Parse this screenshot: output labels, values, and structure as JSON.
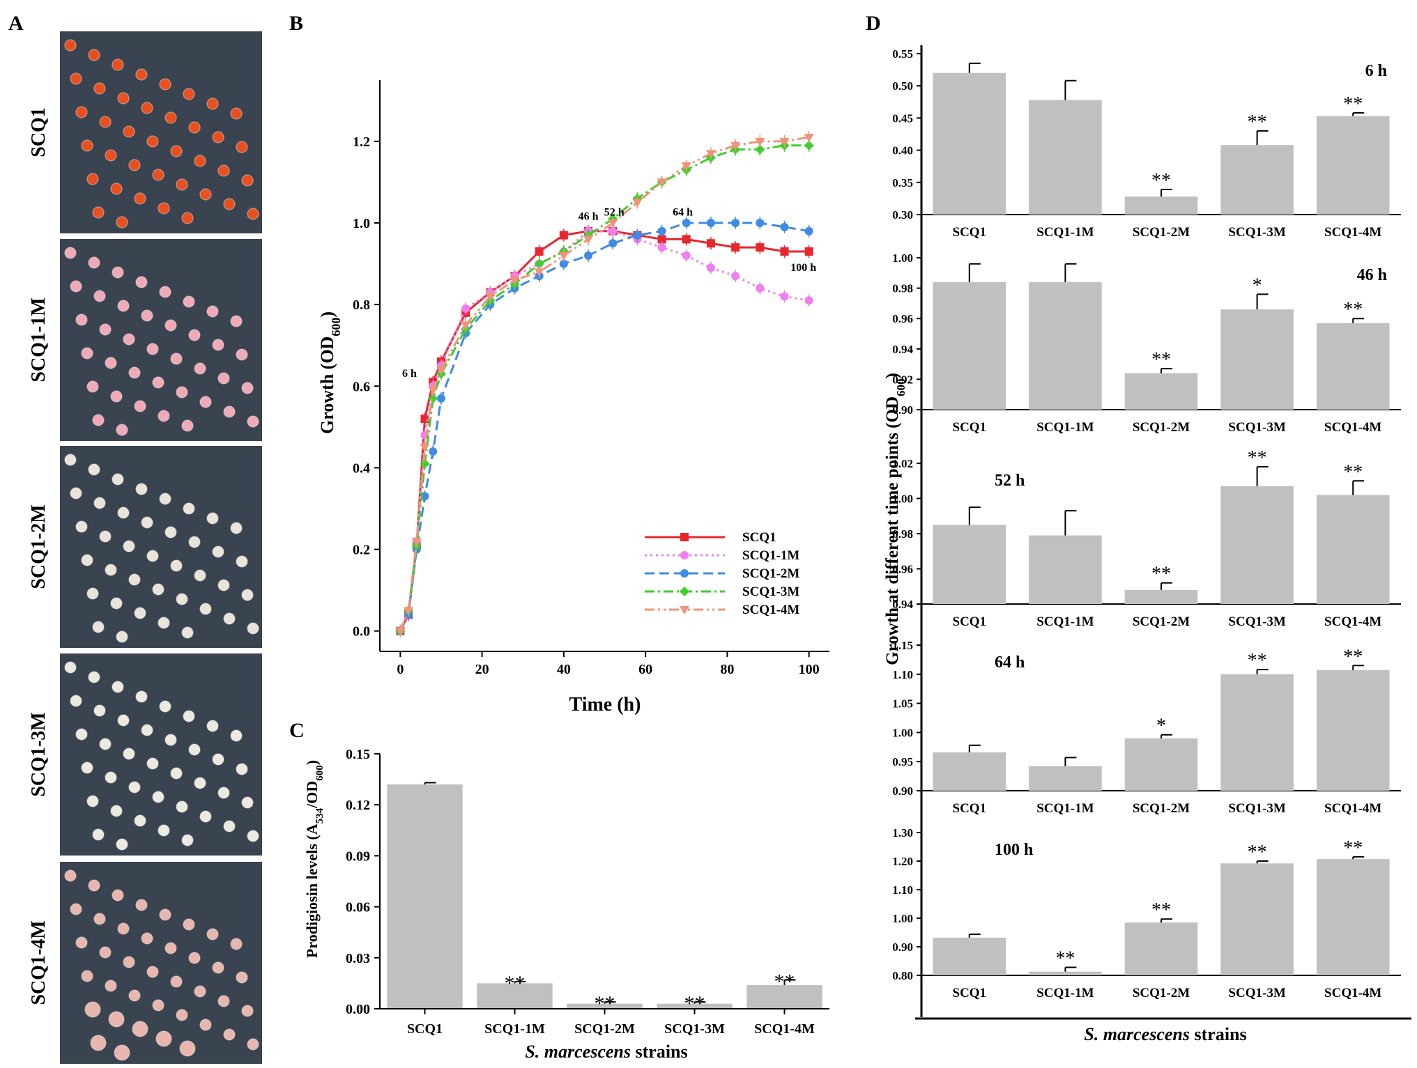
{
  "figure": {
    "panel_labels": [
      "A",
      "B",
      "C",
      "D"
    ],
    "strains": [
      "SCQ1",
      "SCQ1-1M",
      "SCQ1-2M",
      "SCQ1-3M",
      "SCQ1-4M"
    ],
    "plate_colors": [
      "#e8501f",
      "#f0a9b6",
      "#e9e3d8",
      "#ece9df",
      "#e8b6ac"
    ],
    "colors": {
      "bar_fill": "#c0c0c0",
      "axis": "#000000",
      "plate_bg": "#3a4350"
    }
  },
  "chart_data": [
    {
      "id": "B",
      "type": "line",
      "title": "",
      "xlabel": "Time (h)",
      "ylabel": "Growth (OD600)",
      "ylabel_main": "Growth (OD",
      "ylabel_sub": "600",
      "ylabel_end": ")",
      "xlim": [
        -5,
        105
      ],
      "ylim": [
        -0.05,
        1.35
      ],
      "xticks": [
        0,
        20,
        40,
        60,
        80,
        100
      ],
      "yticks": [
        0.0,
        0.2,
        0.4,
        0.6,
        0.8,
        1.0,
        1.2
      ],
      "legend_position": "bottom-right",
      "x": [
        0,
        2,
        4,
        6,
        8,
        10,
        16,
        22,
        28,
        34,
        40,
        46,
        52,
        58,
        64,
        70,
        76,
        82,
        88,
        94,
        100
      ],
      "series": [
        {
          "name": "SCQ1",
          "color": "#e8262d",
          "dash": "",
          "marker": "square",
          "values": [
            0.0,
            0.04,
            0.21,
            0.52,
            0.61,
            0.66,
            0.78,
            0.83,
            0.87,
            0.93,
            0.97,
            0.98,
            0.98,
            0.97,
            0.96,
            0.96,
            0.95,
            0.94,
            0.94,
            0.93,
            0.93
          ]
        },
        {
          "name": "SCQ1-1M",
          "color": "#f07ef0",
          "dash": "3,5",
          "marker": "circle",
          "values": [
            0.0,
            0.05,
            0.22,
            0.48,
            0.6,
            0.65,
            0.79,
            0.83,
            0.87,
            0.9,
            0.93,
            0.98,
            0.98,
            0.96,
            0.94,
            0.92,
            0.89,
            0.87,
            0.84,
            0.82,
            0.81
          ]
        },
        {
          "name": "SCQ1-2M",
          "color": "#3f8be6",
          "dash": "14,7",
          "marker": "circle",
          "values": [
            0.0,
            0.04,
            0.2,
            0.33,
            0.44,
            0.57,
            0.73,
            0.8,
            0.84,
            0.87,
            0.9,
            0.92,
            0.95,
            0.97,
            0.98,
            1.0,
            1.0,
            1.0,
            1.0,
            0.99,
            0.98
          ]
        },
        {
          "name": "SCQ1-3M",
          "color": "#3ecf2c",
          "dash": "14,5,3,5",
          "marker": "diamond",
          "values": [
            0.0,
            0.05,
            0.21,
            0.41,
            0.57,
            0.63,
            0.74,
            0.81,
            0.85,
            0.9,
            0.93,
            0.97,
            1.01,
            1.06,
            1.1,
            1.13,
            1.16,
            1.18,
            1.18,
            1.19,
            1.19
          ]
        },
        {
          "name": "SCQ1-4M",
          "color": "#f0937b",
          "dash": "14,5,3,5,3,5",
          "marker": "triangle-down",
          "values": [
            0.0,
            0.05,
            0.22,
            0.45,
            0.59,
            0.64,
            0.75,
            0.82,
            0.86,
            0.88,
            0.92,
            0.96,
            1.0,
            1.05,
            1.1,
            1.14,
            1.17,
            1.19,
            1.2,
            1.2,
            1.21
          ]
        }
      ],
      "annotations": [
        {
          "text": "6 h",
          "x": 6,
          "y": 0.52
        },
        {
          "text": "46 h",
          "x": 46,
          "y": 0.98
        },
        {
          "text": "52 h",
          "x": 52,
          "y": 0.98
        },
        {
          "text": "64 h",
          "x": 64,
          "y": 0.98
        },
        {
          "text": "100 h",
          "x": 100,
          "y": 0.93
        }
      ]
    },
    {
      "id": "C",
      "type": "bar",
      "title": "",
      "xlabel": "S. marcescens strains",
      "xlabel_italic": "S. marcescens",
      "xlabel_rest": " strains",
      "ylabel": "Prodigiosin levels (A534/OD600)",
      "ylabel_main": "Prodigiosin levels (A",
      "ylabel_sub1": "534",
      "ylabel_mid": "/OD",
      "ylabel_sub2": "600",
      "ylabel_end": ")",
      "ylim": [
        0,
        0.15
      ],
      "yticks": [
        "0.00",
        "0.03",
        "0.06",
        "0.09",
        "0.12",
        "0.15"
      ],
      "categories": [
        "SCQ1",
        "SCQ1-1M",
        "SCQ1-2M",
        "SCQ1-3M",
        "SCQ1-4M"
      ],
      "values": [
        0.132,
        0.015,
        0.003,
        0.003,
        0.014
      ],
      "errors": [
        0.001,
        0.001,
        0.001,
        0.001,
        0.003
      ],
      "significance": [
        "",
        "**",
        "**",
        "**",
        "**"
      ]
    },
    {
      "id": "D",
      "type": "bar",
      "title": "",
      "xlabel": "S. marcescens strains",
      "xlabel_italic": "S. marcescens",
      "xlabel_rest": " strains",
      "ylabel": "Growth at different time points (OD600)",
      "ylabel_main": "Growth at different time points (OD",
      "ylabel_sub": "600",
      "ylabel_end": ")",
      "categories": [
        "SCQ1",
        "SCQ1-1M",
        "SCQ1-2M",
        "SCQ1-3M",
        "SCQ1-4M"
      ],
      "panels": [
        {
          "label": "6 h",
          "label_position": "top-right",
          "ylim": [
            0.3,
            0.55
          ],
          "yticks": [
            "0.30",
            "0.35",
            "0.40",
            "0.45",
            "0.50",
            "0.55"
          ],
          "values": [
            0.52,
            0.478,
            0.328,
            0.408,
            0.453
          ],
          "errors": [
            0.015,
            0.03,
            0.011,
            0.022,
            0.005
          ],
          "significance": [
            "",
            "",
            "**",
            "**",
            "**"
          ]
        },
        {
          "label": "46 h",
          "label_position": "top-right",
          "ylim": [
            0.9,
            1.0
          ],
          "yticks": [
            "0.90",
            "0.92",
            "0.94",
            "0.96",
            "0.98",
            "1.00"
          ],
          "values": [
            0.984,
            0.984,
            0.924,
            0.966,
            0.957
          ],
          "errors": [
            0.012,
            0.012,
            0.003,
            0.01,
            0.003
          ],
          "significance": [
            "",
            "",
            "**",
            "*",
            "**"
          ]
        },
        {
          "label": "52 h",
          "label_position": "top-left",
          "ylim": [
            0.94,
            1.02
          ],
          "yticks": [
            "0.94",
            "0.96",
            "0.98",
            "1.00",
            "1.02"
          ],
          "values": [
            0.985,
            0.979,
            0.948,
            1.007,
            1.002
          ],
          "errors": [
            0.01,
            0.014,
            0.004,
            0.011,
            0.008
          ],
          "significance": [
            "",
            "",
            "**",
            "**",
            "**"
          ]
        },
        {
          "label": "64 h",
          "label_position": "top-left",
          "ylim": [
            0.9,
            1.15
          ],
          "yticks": [
            "0.90",
            "0.95",
            "1.00",
            "1.05",
            "1.10",
            "1.15"
          ],
          "values": [
            0.966,
            0.942,
            0.99,
            1.1,
            1.107
          ],
          "errors": [
            0.012,
            0.015,
            0.006,
            0.008,
            0.008
          ],
          "significance": [
            "",
            "",
            "*",
            "**",
            "**"
          ]
        },
        {
          "label": "100 h",
          "label_position": "top-left",
          "ylim": [
            0.8,
            1.3
          ],
          "yticks": [
            "0.80",
            "0.90",
            "1.00",
            "1.10",
            "1.20",
            "1.30"
          ],
          "values": [
            0.932,
            0.813,
            0.985,
            1.192,
            1.207
          ],
          "errors": [
            0.012,
            0.015,
            0.012,
            0.008,
            0.008
          ],
          "significance": [
            "",
            "**",
            "**",
            "**",
            "**"
          ]
        }
      ]
    }
  ]
}
